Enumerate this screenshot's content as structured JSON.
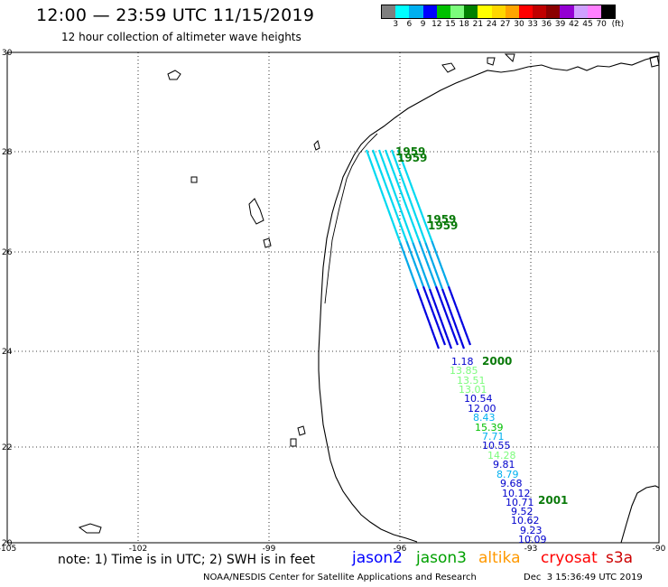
{
  "header": {
    "title": "12:00 — 23:59 UTC 11/15/2019",
    "subtitle": "12 hour collection of altimeter wave heights"
  },
  "colorbar": {
    "unit_label": "(ft)",
    "labels": [
      "3",
      "6",
      "9",
      "12",
      "15",
      "18",
      "21",
      "24",
      "27",
      "30",
      "33",
      "36",
      "39",
      "42",
      "45",
      "70"
    ],
    "colors": [
      "#7f7f7f",
      "#00ffff",
      "#00b0f0",
      "#0000ff",
      "#00c000",
      "#7cfc7c",
      "#008000",
      "#ffff00",
      "#ffd700",
      "#ffa500",
      "#ff0000",
      "#c00000",
      "#8b0000",
      "#9400d3",
      "#d0a0ff",
      "#ff80ff",
      "#000000"
    ]
  },
  "map": {
    "lat_labels": [
      "30",
      "28",
      "26",
      "24",
      "22",
      "20"
    ],
    "lon_labels": [
      "-105",
      "-102",
      "-99",
      "-96",
      "-93",
      "-90"
    ],
    "time_labels": [
      "1959",
      "1959",
      "1959",
      "1959",
      "2000",
      "2001"
    ],
    "wave_labels": [
      {
        "text": "1.18",
        "color": "#0000cc"
      },
      {
        "text": "13.85",
        "color": "#7cfc7c"
      },
      {
        "text": "13.51",
        "color": "#7cfc7c"
      },
      {
        "text": "13.01",
        "color": "#7cfc7c"
      },
      {
        "text": "10.54",
        "color": "#0000cc"
      },
      {
        "text": "12.00",
        "color": "#0000cc"
      },
      {
        "text": "8.43",
        "color": "#00b0f0"
      },
      {
        "text": "15.39",
        "color": "#00c000"
      },
      {
        "text": "7.71",
        "color": "#00b0f0"
      },
      {
        "text": "10.55",
        "color": "#0000cc"
      },
      {
        "text": "14.28",
        "color": "#7cfc7c"
      },
      {
        "text": "9.81",
        "color": "#0000cc"
      },
      {
        "text": "8.79",
        "color": "#00b0f0"
      },
      {
        "text": "9.68",
        "color": "#0000cc"
      },
      {
        "text": "10.12",
        "color": "#0000cc"
      },
      {
        "text": "10.71",
        "color": "#0000cc"
      },
      {
        "text": "9.52",
        "color": "#0000cc"
      },
      {
        "text": "10.62",
        "color": "#0000cc"
      },
      {
        "text": "9.23",
        "color": "#0000cc"
      },
      {
        "text": "10.09",
        "color": "#0000cc"
      }
    ]
  },
  "legend": {
    "note": "note: 1) Time is in UTC; 2) SWH is in feet",
    "satellites": [
      {
        "name": "jason2",
        "color": "#0000ff"
      },
      {
        "name": "jason3",
        "color": "#00a000"
      },
      {
        "name": "altika",
        "color": "#ff9900"
      },
      {
        "name": "cryosat",
        "color": "#ff0000"
      },
      {
        "name": "s3a",
        "color": "#cc0000"
      }
    ]
  },
  "footer": {
    "credit": "NOAA/NESDIS Center for Satellite Applications and Research",
    "timestamp": "Dec  3 15:36:49 UTC 2019"
  }
}
